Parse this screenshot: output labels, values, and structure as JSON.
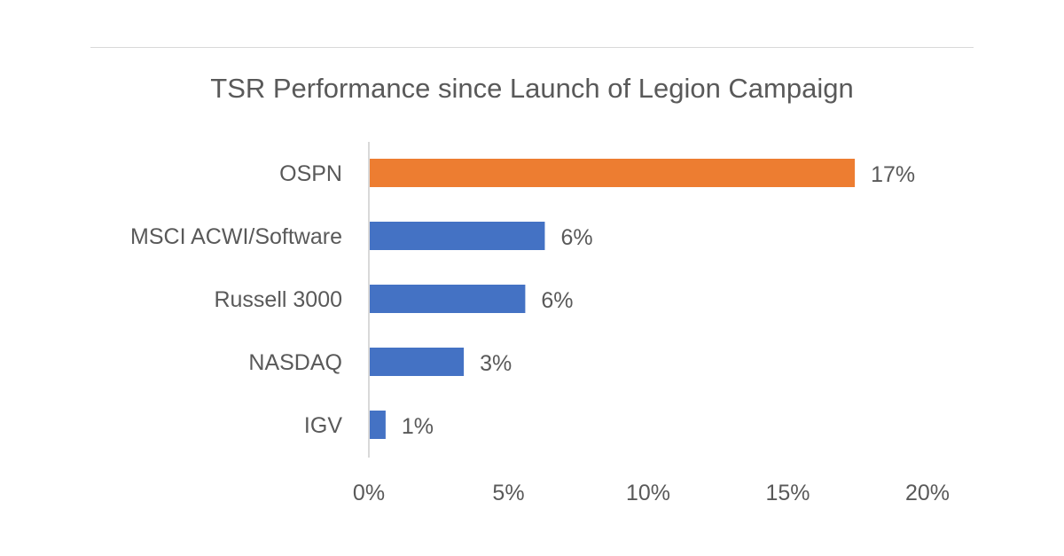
{
  "chart_data": {
    "type": "bar",
    "orientation": "horizontal",
    "title": "TSR Performance since Launch of Legion Campaign",
    "categories": [
      "OSPN",
      "MSCI ACWI/Software",
      "Russell 3000",
      "NASDAQ",
      "IGV"
    ],
    "values": [
      17.4,
      6.3,
      5.6,
      3.4,
      0.6
    ],
    "data_labels": [
      "17%",
      "6%",
      "6%",
      "3%",
      "1%"
    ],
    "colors": [
      "#ED7D31",
      "#4472C4",
      "#4472C4",
      "#4472C4",
      "#4472C4"
    ],
    "xlim": [
      0,
      20
    ],
    "x_ticks": [
      0,
      5,
      10,
      15,
      20
    ],
    "x_tick_labels": [
      "0%",
      "5%",
      "10%",
      "15%",
      "20%"
    ],
    "xlabel": "",
    "ylabel": "",
    "grid": false,
    "legend": "none"
  }
}
